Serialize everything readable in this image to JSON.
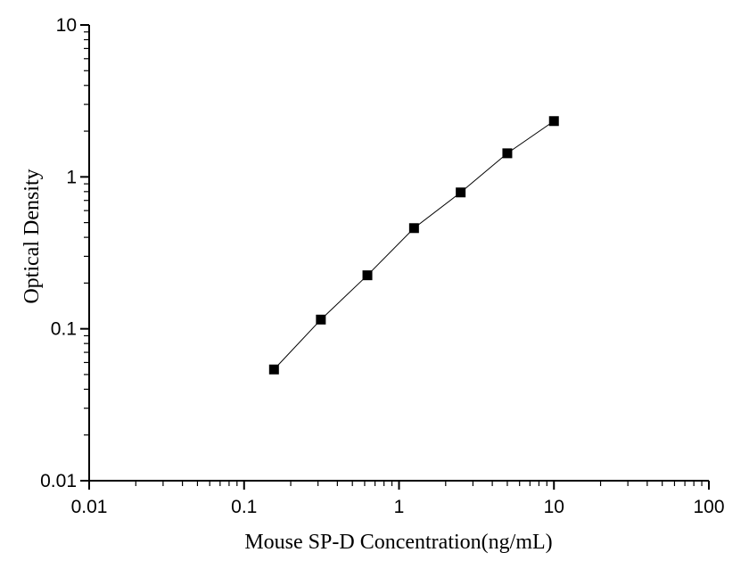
{
  "chart_data": {
    "type": "line",
    "title": "",
    "xlabel": "Mouse SP-D Concentration(ng/mL)",
    "ylabel": "Optical Density",
    "xscale": "log",
    "yscale": "log",
    "xlim": [
      0.01,
      100
    ],
    "ylim": [
      0.01,
      10
    ],
    "x_ticks": [
      "0.01",
      "0.1",
      "1",
      "10",
      "100"
    ],
    "y_ticks": [
      "0.01",
      "0.1",
      "1",
      "10"
    ],
    "grid": false,
    "legend": "none",
    "marker": "square",
    "colors": {
      "marker": "#000000",
      "line": "#000000",
      "axis": "#000000"
    },
    "series": [
      {
        "x": [
          0.156,
          0.313,
          0.625,
          1.25,
          2.5,
          5,
          10
        ],
        "y": [
          0.054,
          0.115,
          0.225,
          0.46,
          0.79,
          1.43,
          2.33
        ]
      }
    ]
  }
}
